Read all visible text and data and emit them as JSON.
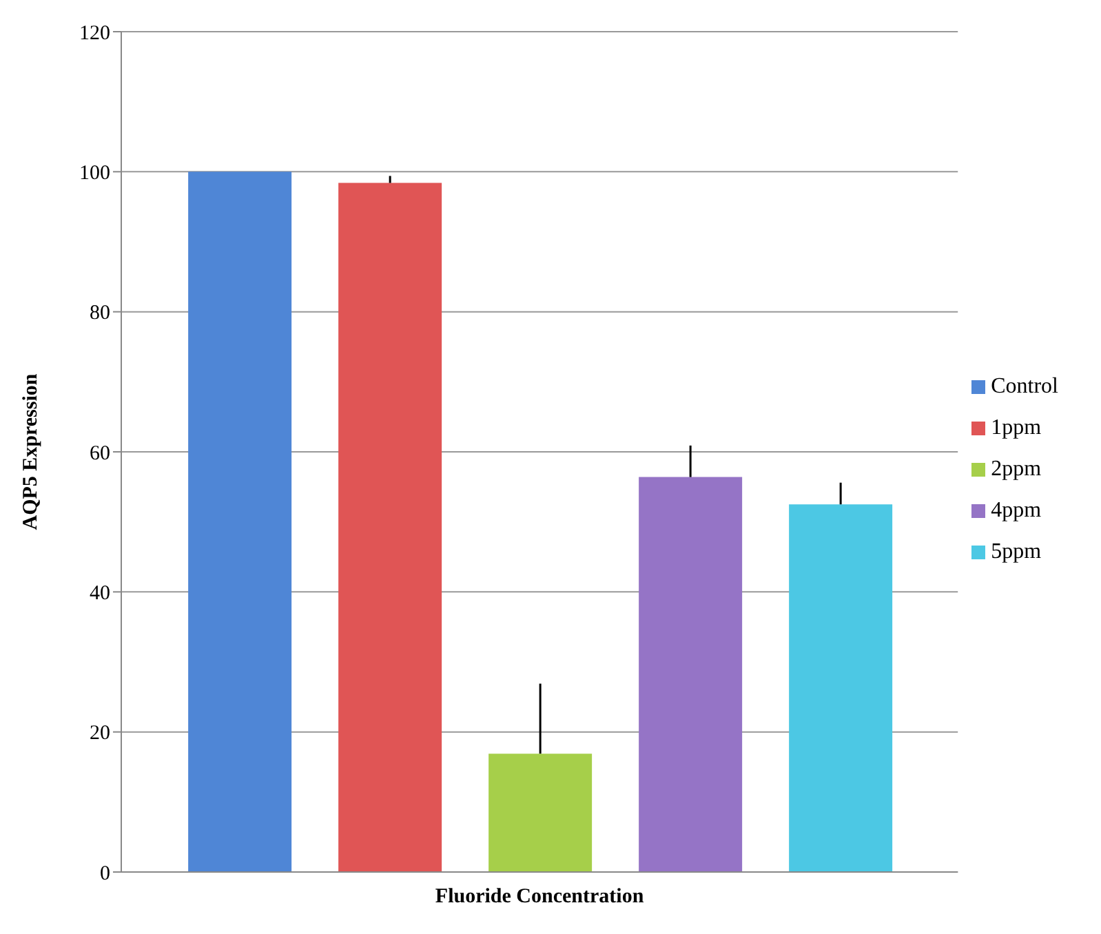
{
  "chart_data": {
    "type": "bar",
    "xlabel": "Fluoride Concentration",
    "ylabel": "AQP5 Expression",
    "categories": [
      null
    ],
    "series": [
      {
        "name": "Control",
        "color": "#4f86d6",
        "values": [
          100
        ]
      },
      {
        "name": "1ppm",
        "color": "#e05555",
        "values": [
          98.4
        ],
        "errors": [
          [
            98.4,
            99.4
          ]
        ]
      },
      {
        "name": "2ppm",
        "color": "#a6cf4a",
        "values": [
          16.9
        ],
        "errors": [
          [
            16.9,
            26.9
          ]
        ]
      },
      {
        "name": "4ppm",
        "color": "#9574c6",
        "values": [
          56.4
        ],
        "errors": [
          [
            56.4,
            60.9
          ]
        ]
      },
      {
        "name": "5ppm",
        "color": "#4cc8e4",
        "values": [
          52.5
        ],
        "errors": [
          [
            52.5,
            55.6
          ]
        ]
      }
    ],
    "ylim": [
      0,
      120
    ],
    "yticks": [
      0,
      20,
      40,
      60,
      80,
      100,
      120
    ],
    "grid": "y",
    "legend": "right"
  }
}
